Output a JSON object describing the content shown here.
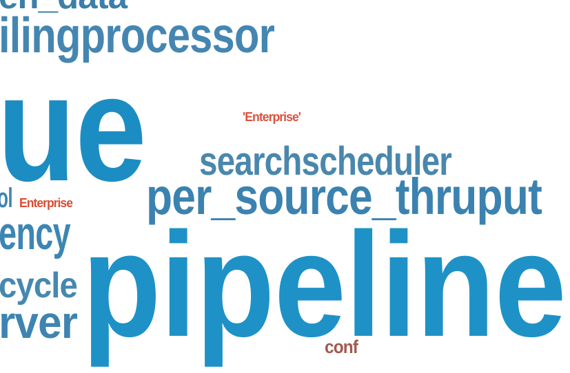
{
  "words": [
    {
      "text": "en_data",
      "color": "#3c7faa"
    },
    {
      "text": "ilingprocessor",
      "color": "#4586b1"
    },
    {
      "text": "ue",
      "color": "#1c8dc2"
    },
    {
      "text": "'Enterprise'",
      "color": "#d9533f"
    },
    {
      "text": "searchscheduler",
      "color": "#4a87ad"
    },
    {
      "text": "per_source_thruput",
      "color": "#3b82b0"
    },
    {
      "text": "ol",
      "color": "#3f86b3"
    },
    {
      "text": "Enterprise",
      "color": "#d94c33"
    },
    {
      "text": "ency",
      "color": "#3d86b3"
    },
    {
      "text": "pipeline",
      "color": "#1e92c6"
    },
    {
      "text": "cycle",
      "color": "#4588b0"
    },
    {
      "text": "rver",
      "color": "#3f84b0"
    },
    {
      "text": "conf",
      "color": "#a05a4d"
    }
  ]
}
